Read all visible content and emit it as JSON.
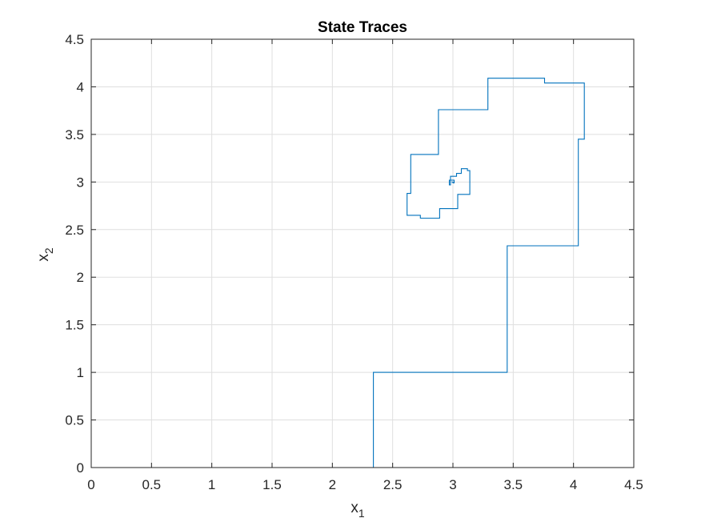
{
  "chart_data": {
    "type": "line",
    "title": "State Traces",
    "xlabel": "x",
    "xlabel_sub": "1",
    "ylabel": "x",
    "ylabel_sub": "2",
    "xlim": [
      0,
      4.5
    ],
    "ylim": [
      0,
      4.5
    ],
    "xticks": [
      "0",
      "0.5",
      "1",
      "1.5",
      "2",
      "2.5",
      "3",
      "3.5",
      "4",
      "4.5"
    ],
    "yticks": [
      "0",
      "0.5",
      "1",
      "1.5",
      "2",
      "2.5",
      "3",
      "3.5",
      "4",
      "4.5"
    ],
    "grid": true,
    "line_color": "#0072BD",
    "series": [
      {
        "x": [
          0,
          2.34,
          2.34,
          3.45,
          3.45,
          4.04,
          4.04,
          4.09,
          4.09,
          3.76,
          3.76,
          3.29,
          3.29,
          2.88,
          2.88,
          2.65,
          2.65,
          2.62,
          2.62,
          2.73,
          2.73,
          2.89,
          2.89,
          3.04,
          3.04,
          3.14,
          3.14,
          3.12,
          3.12,
          3.07,
          3.07,
          3.03,
          3.03,
          2.98,
          2.98,
          2.97,
          2.97,
          3.01,
          3.01,
          3.0,
          3.0,
          2.99
        ],
        "y": [
          0,
          0,
          1.0,
          1.0,
          2.33,
          2.33,
          3.45,
          3.45,
          4.04,
          4.04,
          4.09,
          4.09,
          3.76,
          3.76,
          3.29,
          3.29,
          2.88,
          2.88,
          2.65,
          2.65,
          2.62,
          2.62,
          2.72,
          2.72,
          2.87,
          2.87,
          3.12,
          3.12,
          3.14,
          3.14,
          3.09,
          3.09,
          3.06,
          3.06,
          2.97,
          2.97,
          3.02,
          3.02,
          2.99,
          2.99,
          3.0,
          3.0
        ]
      }
    ]
  }
}
